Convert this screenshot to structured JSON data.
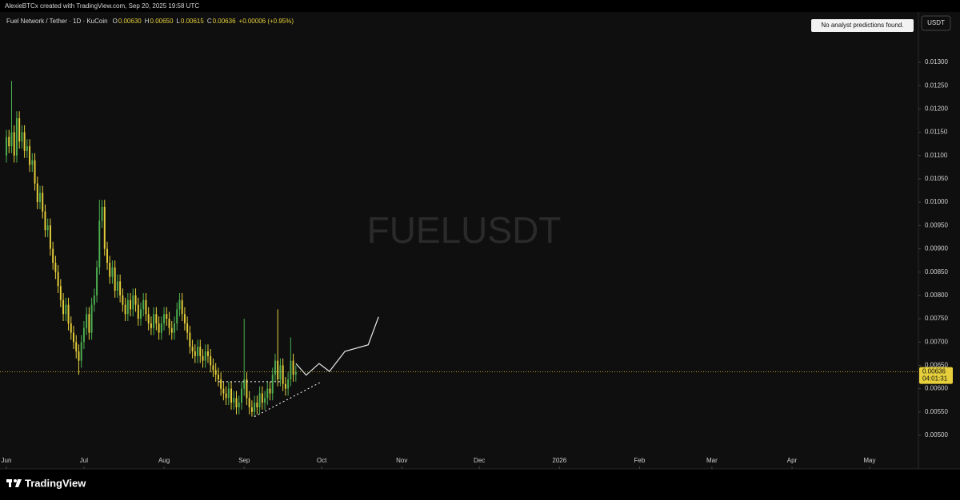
{
  "header": {
    "credit": "AlexieBTCx created with TradingView.com, Sep 20, 2025 19:58 UTC"
  },
  "footer": {
    "brand": "TradingView"
  },
  "chart_data": {
    "type": "candlestick",
    "title": "Fuel Network / Tether · 1D · KuCoin",
    "ohlc_legend": [
      {
        "key": "O",
        "text": "0.00630"
      },
      {
        "key": "H",
        "text": "0.00650"
      },
      {
        "key": "L",
        "text": "0.00615"
      },
      {
        "key": "C",
        "text": "0.00636"
      }
    ],
    "change": "+0.00006 (+0.95%)",
    "watermark": "FUELUSDT",
    "notice": "No analyst predictions found.",
    "currency": "USDT",
    "up_color": "#4caf50",
    "down_color": "#e6cf3a",
    "grid": false,
    "x": [
      0,
      1,
      2,
      3,
      4,
      5,
      6,
      7,
      8,
      9,
      10,
      11,
      12,
      13,
      14,
      15,
      16,
      17,
      18,
      19,
      20,
      21,
      22,
      23,
      24,
      25,
      26,
      27,
      28,
      29,
      30,
      31,
      32,
      33,
      34,
      35,
      36,
      37,
      38,
      39,
      40,
      41,
      42,
      43,
      44,
      45,
      46,
      47,
      48,
      49,
      50,
      51,
      52,
      53,
      54,
      55,
      56,
      57,
      58,
      59,
      60,
      61,
      62,
      63,
      64,
      65,
      66,
      67,
      68,
      69,
      70,
      71,
      72,
      73,
      74,
      75,
      76,
      77,
      78,
      79,
      80,
      81,
      82,
      83,
      84,
      85,
      86,
      87,
      88,
      89,
      90,
      91,
      92,
      93,
      94,
      95,
      96,
      97,
      98,
      99,
      100,
      101,
      102,
      103,
      104,
      105,
      106,
      107,
      108,
      109,
      110,
      111,
      112
    ],
    "open": [
      0.011,
      0.0114,
      0.0112,
      0.0115,
      0.011,
      0.0118,
      0.0113,
      0.0115,
      0.0111,
      0.0112,
      0.0108,
      0.0109,
      0.0104,
      0.01,
      0.0102,
      0.0098,
      0.0094,
      0.0095,
      0.009,
      0.0087,
      0.0085,
      0.0082,
      0.0079,
      0.0076,
      0.0078,
      0.0074,
      0.0072,
      0.007,
      0.0068,
      0.0066,
      0.007,
      0.0073,
      0.0076,
      0.0072,
      0.0078,
      0.008,
      0.0086,
      0.0096,
      0.0099,
      0.009,
      0.0087,
      0.0084,
      0.0086,
      0.0081,
      0.0083,
      0.008,
      0.0078,
      0.0076,
      0.0079,
      0.0077,
      0.008,
      0.0078,
      0.0075,
      0.0077,
      0.0079,
      0.0076,
      0.0074,
      0.0073,
      0.0076,
      0.0074,
      0.0072,
      0.0074,
      0.0076,
      0.0075,
      0.0073,
      0.0072,
      0.0074,
      0.0077,
      0.0079,
      0.0076,
      0.0074,
      0.0072,
      0.0069,
      0.0068,
      0.0067,
      0.0069,
      0.0067,
      0.0066,
      0.0068,
      0.0067,
      0.0065,
      0.0064,
      0.0063,
      0.0062,
      0.006,
      0.0059,
      0.0058,
      0.006,
      0.0057,
      0.0058,
      0.0056,
      0.0057,
      0.006,
      0.0062,
      0.0058,
      0.0056,
      0.0055,
      0.0057,
      0.0056,
      0.0059,
      0.0057,
      0.0058,
      0.006,
      0.0059,
      0.0063,
      0.0066,
      0.0062,
      0.0065,
      0.0061,
      0.006,
      0.0062,
      0.0066,
      0.0063
    ],
    "high": [
      0.01155,
      0.01155,
      0.0126,
      0.01165,
      0.01195,
      0.01195,
      0.01165,
      0.01165,
      0.01135,
      0.01135,
      0.01105,
      0.01105,
      0.01055,
      0.01035,
      0.01035,
      0.00995,
      0.00965,
      0.00965,
      0.00915,
      0.00885,
      0.00865,
      0.00835,
      0.00805,
      0.00795,
      0.00795,
      0.00755,
      0.00735,
      0.00715,
      0.00695,
      0.00715,
      0.00745,
      0.00775,
      0.00775,
      0.00795,
      0.00815,
      0.00875,
      0.01005,
      0.01005,
      0.01005,
      0.00915,
      0.00885,
      0.00875,
      0.00875,
      0.00845,
      0.00845,
      0.00815,
      0.00795,
      0.00805,
      0.00805,
      0.00815,
      0.00815,
      0.00795,
      0.00785,
      0.00805,
      0.00805,
      0.00775,
      0.00755,
      0.00775,
      0.00775,
      0.00755,
      0.00755,
      0.00775,
      0.00775,
      0.00765,
      0.00745,
      0.00755,
      0.00785,
      0.00805,
      0.00805,
      0.00775,
      0.00755,
      0.00735,
      0.00705,
      0.00695,
      0.00705,
      0.00705,
      0.00685,
      0.00695,
      0.00695,
      0.00685,
      0.00665,
      0.00655,
      0.00645,
      0.00635,
      0.00615,
      0.00605,
      0.00615,
      0.00615,
      0.00595,
      0.00595,
      0.00585,
      0.00615,
      0.0075,
      0.00635,
      0.00595,
      0.00575,
      0.00585,
      0.00585,
      0.00605,
      0.00605,
      0.00595,
      0.00615,
      0.00615,
      0.00645,
      0.00675,
      0.0077,
      0.00665,
      0.00665,
      0.00625,
      0.00635,
      0.0071,
      0.00675,
      0.0065
    ],
    "low": [
      0.01085,
      0.01105,
      0.01105,
      0.01085,
      0.01085,
      0.01115,
      0.01115,
      0.01095,
      0.01095,
      0.01065,
      0.01065,
      0.01025,
      0.00985,
      0.00985,
      0.00965,
      0.00925,
      0.00925,
      0.00885,
      0.00855,
      0.00835,
      0.00805,
      0.00775,
      0.00745,
      0.00745,
      0.00725,
      0.00705,
      0.00685,
      0.00665,
      0.0063,
      0.00645,
      0.00685,
      0.00715,
      0.00705,
      0.00705,
      0.00765,
      0.00785,
      0.00845,
      0.00945,
      0.00885,
      0.00855,
      0.00825,
      0.00825,
      0.00795,
      0.00795,
      0.00785,
      0.00765,
      0.00745,
      0.00745,
      0.00755,
      0.00755,
      0.00765,
      0.00735,
      0.00735,
      0.00755,
      0.00745,
      0.00725,
      0.00715,
      0.00715,
      0.00725,
      0.00705,
      0.00705,
      0.00725,
      0.00735,
      0.00715,
      0.00705,
      0.00705,
      0.00725,
      0.00755,
      0.00745,
      0.00725,
      0.00705,
      0.00675,
      0.00665,
      0.00655,
      0.00655,
      0.00655,
      0.00645,
      0.00645,
      0.00655,
      0.00635,
      0.00625,
      0.00615,
      0.00605,
      0.00585,
      0.00575,
      0.00565,
      0.00565,
      0.00555,
      0.00555,
      0.00545,
      0.00545,
      0.00555,
      0.00585,
      0.00565,
      0.00545,
      0.0054,
      0.0054,
      0.00545,
      0.00545,
      0.00555,
      0.00555,
      0.00565,
      0.00575,
      0.00575,
      0.00615,
      0.00605,
      0.00605,
      0.00595,
      0.00585,
      0.00585,
      0.00605,
      0.00615,
      0.00615
    ],
    "close": [
      0.0114,
      0.0112,
      0.0115,
      0.011,
      0.0118,
      0.0113,
      0.0115,
      0.0111,
      0.0112,
      0.0108,
      0.0109,
      0.0104,
      0.01,
      0.0102,
      0.0098,
      0.0094,
      0.0095,
      0.009,
      0.0087,
      0.0085,
      0.0082,
      0.0079,
      0.0076,
      0.0078,
      0.0074,
      0.0072,
      0.007,
      0.0068,
      0.0066,
      0.007,
      0.0073,
      0.0076,
      0.0072,
      0.0078,
      0.008,
      0.0086,
      0.0096,
      0.0099,
      0.009,
      0.0087,
      0.0084,
      0.0086,
      0.0081,
      0.0083,
      0.008,
      0.0078,
      0.0076,
      0.0079,
      0.0077,
      0.008,
      0.0078,
      0.0075,
      0.0077,
      0.0079,
      0.0076,
      0.0074,
      0.0073,
      0.0076,
      0.0074,
      0.0072,
      0.0074,
      0.0076,
      0.0075,
      0.0073,
      0.0072,
      0.0074,
      0.0077,
      0.0079,
      0.0076,
      0.0074,
      0.0072,
      0.0069,
      0.0068,
      0.0067,
      0.0069,
      0.0067,
      0.0066,
      0.0068,
      0.0067,
      0.0065,
      0.0064,
      0.0063,
      0.0062,
      0.006,
      0.0059,
      0.0058,
      0.006,
      0.0057,
      0.0058,
      0.0056,
      0.0057,
      0.006,
      0.0062,
      0.0058,
      0.0056,
      0.0055,
      0.0057,
      0.0056,
      0.0059,
      0.0057,
      0.0058,
      0.006,
      0.0059,
      0.0063,
      0.0066,
      0.0062,
      0.0065,
      0.0061,
      0.006,
      0.0062,
      0.0066,
      0.0063,
      0.00636
    ],
    "last_price": 0.00636,
    "countdown": "04:01:31",
    "projection": {
      "color": "#e8e8e8",
      "x": [
        112,
        116,
        121,
        125,
        131,
        140,
        144
      ],
      "values": [
        0.00654,
        0.00629,
        0.00654,
        0.00637,
        0.0068,
        0.00694,
        0.00754
      ]
    },
    "support": {
      "color": "#ffffff",
      "x": [
        82,
        106
      ],
      "values": [
        0.00615,
        0.00615
      ]
    },
    "trendline": {
      "color": "#ffffff",
      "x": [
        96,
        122
      ],
      "values": [
        0.0054,
        0.00615
      ]
    },
    "xlim": [
      -2.48,
      352.9
    ],
    "xticks": [
      {
        "value": 0,
        "label": "Jun"
      },
      {
        "value": 30,
        "label": "Jul"
      },
      {
        "value": 61,
        "label": "Aug"
      },
      {
        "value": 92,
        "label": "Sep"
      },
      {
        "value": 122,
        "label": "Oct"
      },
      {
        "value": 153,
        "label": "Nov"
      },
      {
        "value": 183,
        "label": "Dec"
      },
      {
        "value": 214,
        "label": "2026"
      },
      {
        "value": 245,
        "label": "Feb"
      },
      {
        "value": 273,
        "label": "Mar"
      },
      {
        "value": 304,
        "label": "Apr"
      },
      {
        "value": 334,
        "label": "May"
      }
    ],
    "ylim": [
      0.004315,
      0.014079
    ],
    "yticks": [
      {
        "value": 0.005,
        "label": "0.00500"
      },
      {
        "value": 0.0055,
        "label": "0.00550"
      },
      {
        "value": 0.006,
        "label": "0.00600"
      },
      {
        "value": 0.0065,
        "label": "0.00650"
      },
      {
        "value": 0.007,
        "label": "0.00700"
      },
      {
        "value": 0.0075,
        "label": "0.00750"
      },
      {
        "value": 0.008,
        "label": "0.00800"
      },
      {
        "value": 0.0085,
        "label": "0.00850"
      },
      {
        "value": 0.009,
        "label": "0.00900"
      },
      {
        "value": 0.0095,
        "label": "0.00950"
      },
      {
        "value": 0.01,
        "label": "0.01000"
      },
      {
        "value": 0.0105,
        "label": "0.01050"
      },
      {
        "value": 0.011,
        "label": "0.01100"
      },
      {
        "value": 0.0115,
        "label": "0.01150"
      },
      {
        "value": 0.012,
        "label": "0.01200"
      },
      {
        "value": 0.0125,
        "label": "0.01250"
      },
      {
        "value": 0.013,
        "label": "0.01300"
      }
    ]
  }
}
